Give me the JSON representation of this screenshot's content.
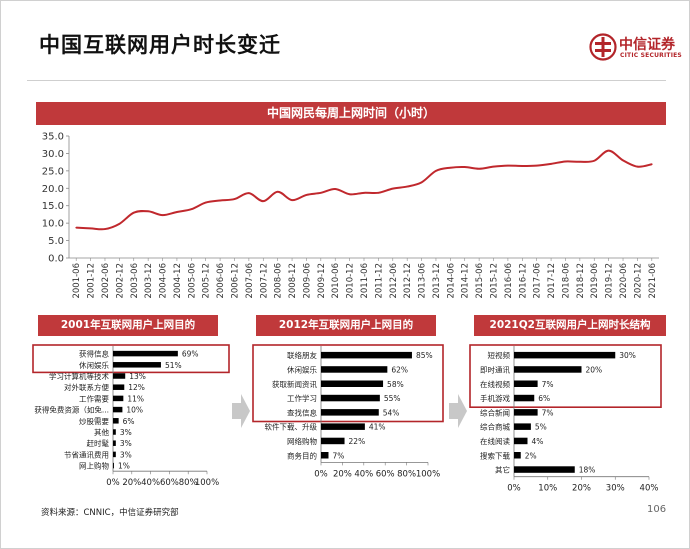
{
  "page": {
    "title": "中国互联网用户时长变迁",
    "source": "资料来源：CNNIC，中信证券研究部",
    "page_number": "106"
  },
  "logo": {
    "name_cn": "中信证券",
    "name_en": "CITIC SECURITIES",
    "color": "#b3252a"
  },
  "theme": {
    "accent": "#c0393b",
    "line_color": "#c0282d",
    "bar_color": "#000000",
    "highlight_border": "#b3252a"
  },
  "chart_data": [
    {
      "type": "line",
      "title": "中国网民每周上网时间（小时）",
      "ylim": [
        0,
        35
      ],
      "yticks": [
        "0.0",
        "5.0",
        "10.0",
        "15.0",
        "20.0",
        "25.0",
        "30.0",
        "35.0"
      ],
      "grid": false,
      "x": [
        "2001-06",
        "2001-12",
        "2002-06",
        "2002-12",
        "2003-06",
        "2003-12",
        "2004-06",
        "2004-12",
        "2005-06",
        "2005-12",
        "2006-06",
        "2006-12",
        "2007-06",
        "2007-12",
        "2008-06",
        "2008-12",
        "2009-06",
        "2009-12",
        "2010-06",
        "2010-12",
        "2011-06",
        "2011-12",
        "2012-06",
        "2012-12",
        "2013-06",
        "2013-12",
        "2014-06",
        "2014-12",
        "2015-06",
        "2015-12",
        "2016-06",
        "2016-12",
        "2017-06",
        "2017-12",
        "2018-06",
        "2018-12",
        "2019-06",
        "2019-12",
        "2020-06",
        "2020-12",
        "2021-06"
      ],
      "values": [
        8.7,
        8.5,
        8.3,
        9.8,
        13.0,
        13.4,
        12.3,
        13.2,
        14.0,
        15.9,
        16.5,
        16.9,
        18.6,
        16.3,
        19.0,
        16.6,
        18.1,
        18.7,
        19.8,
        18.3,
        18.7,
        18.7,
        19.9,
        20.5,
        21.7,
        25.0,
        25.9,
        26.1,
        25.6,
        26.2,
        26.5,
        26.4,
        26.5,
        27.0,
        27.7,
        27.6,
        27.9,
        30.8,
        28.0,
        26.2,
        26.9
      ]
    },
    {
      "type": "bar",
      "orientation": "horizontal",
      "title": "2001年互联网用户上网目的",
      "categories": [
        "获得信息",
        "休闲娱乐",
        "学习计算机等技术",
        "对外联系方便",
        "工作需要",
        "获得免费资源（如免...",
        "炒股需要",
        "其他",
        "赶时髦",
        "节省通讯费用",
        "网上购物"
      ],
      "values": [
        69,
        51,
        13,
        12,
        11,
        10,
        6,
        3,
        3,
        3,
        1
      ],
      "value_labels": [
        "69%",
        "51%",
        "13%",
        "12%",
        "11%",
        "10%",
        "6%",
        "3%",
        "3%",
        "3%",
        "1%"
      ],
      "xlim": [
        0,
        100
      ],
      "xticks": [
        "0%",
        "20%",
        "40%",
        "60%",
        "80%",
        "100%"
      ],
      "highlight_count": 2
    },
    {
      "type": "bar",
      "orientation": "horizontal",
      "title": "2012年互联网用户上网目的",
      "categories": [
        "联络朋友",
        "休闲娱乐",
        "获取新闻资讯",
        "工作学习",
        "查找信息",
        "软件下载、升级",
        "网络购物",
        "商务目的"
      ],
      "values": [
        85,
        62,
        58,
        55,
        54,
        41,
        22,
        7
      ],
      "value_labels": [
        "85%",
        "62%",
        "58%",
        "55%",
        "54%",
        "41%",
        "22%",
        "7%"
      ],
      "xlim": [
        0,
        100
      ],
      "xticks": [
        "0%",
        "20%",
        "40%",
        "60%",
        "80%",
        "100%"
      ],
      "highlight_count": 5
    },
    {
      "type": "bar",
      "orientation": "horizontal",
      "title": "2021Q2互联网用户上网时长结构",
      "categories": [
        "短视频",
        "即时通讯",
        "在线视频",
        "手机游戏",
        "综合新闻",
        "综合商城",
        "在线阅读",
        "搜索下载",
        "其它"
      ],
      "values": [
        30,
        20,
        7,
        6,
        7,
        5,
        4,
        2,
        18
      ],
      "value_labels": [
        "30%",
        "20%",
        "7%",
        "6%",
        "7%",
        "5%",
        "4%",
        "2%",
        "18%"
      ],
      "xlim": [
        0,
        40
      ],
      "xticks": [
        "0%",
        "10%",
        "20%",
        "30%",
        "40%"
      ],
      "highlight_count": 4
    }
  ]
}
